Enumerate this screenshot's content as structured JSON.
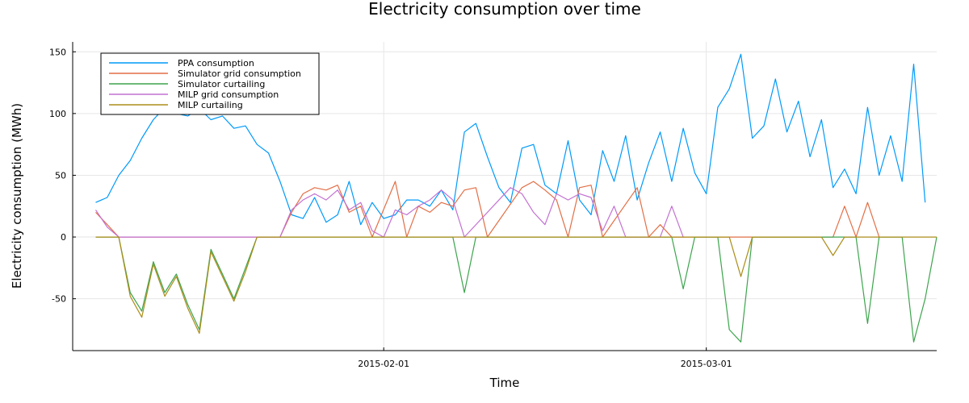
{
  "chart_data": {
    "type": "line",
    "title": "Electricity consumption over time",
    "xlabel": "Time",
    "ylabel": "Electricity consumption (MWh)",
    "x_range": [
      "2015-01-05",
      "2015-03-21"
    ],
    "ylim": [
      -92,
      158
    ],
    "x_ticks": [
      {
        "date": "2015-02-01",
        "label": "2015-02-01"
      },
      {
        "date": "2015-03-01",
        "label": "2015-03-01"
      }
    ],
    "y_ticks": [
      -50,
      0,
      50,
      100,
      150
    ],
    "grid": true,
    "legend_position": "top-left",
    "series": [
      {
        "name": "PPA consumption",
        "color": "#009af9",
        "points": [
          [
            "2015-01-07",
            28
          ],
          [
            "2015-01-08",
            32
          ],
          [
            "2015-01-09",
            50
          ],
          [
            "2015-01-10",
            62
          ],
          [
            "2015-01-11",
            80
          ],
          [
            "2015-01-12",
            95
          ],
          [
            "2015-01-13",
            105
          ],
          [
            "2015-01-14",
            100
          ],
          [
            "2015-01-15",
            98
          ],
          [
            "2015-01-16",
            104
          ],
          [
            "2015-01-17",
            95
          ],
          [
            "2015-01-18",
            98
          ],
          [
            "2015-01-19",
            88
          ],
          [
            "2015-01-20",
            90
          ],
          [
            "2015-01-21",
            75
          ],
          [
            "2015-01-22",
            68
          ],
          [
            "2015-01-23",
            45
          ],
          [
            "2015-01-24",
            18
          ],
          [
            "2015-01-25",
            15
          ],
          [
            "2015-01-26",
            32
          ],
          [
            "2015-01-27",
            12
          ],
          [
            "2015-01-28",
            18
          ],
          [
            "2015-01-29",
            45
          ],
          [
            "2015-01-30",
            10
          ],
          [
            "2015-01-31",
            28
          ],
          [
            "2015-02-01",
            15
          ],
          [
            "2015-02-02",
            18
          ],
          [
            "2015-02-03",
            30
          ],
          [
            "2015-02-04",
            30
          ],
          [
            "2015-02-05",
            25
          ],
          [
            "2015-02-06",
            38
          ],
          [
            "2015-02-07",
            22
          ],
          [
            "2015-02-08",
            85
          ],
          [
            "2015-02-09",
            92
          ],
          [
            "2015-02-10",
            65
          ],
          [
            "2015-02-11",
            40
          ],
          [
            "2015-02-12",
            28
          ],
          [
            "2015-02-13",
            72
          ],
          [
            "2015-02-14",
            75
          ],
          [
            "2015-02-15",
            42
          ],
          [
            "2015-02-16",
            35
          ],
          [
            "2015-02-17",
            78
          ],
          [
            "2015-02-18",
            30
          ],
          [
            "2015-02-19",
            18
          ],
          [
            "2015-02-20",
            70
          ],
          [
            "2015-02-21",
            45
          ],
          [
            "2015-02-22",
            82
          ],
          [
            "2015-02-23",
            30
          ],
          [
            "2015-02-24",
            60
          ],
          [
            "2015-02-25",
            85
          ],
          [
            "2015-02-26",
            45
          ],
          [
            "2015-02-27",
            88
          ],
          [
            "2015-02-28",
            52
          ],
          [
            "2015-03-01",
            35
          ],
          [
            "2015-03-02",
            105
          ],
          [
            "2015-03-03",
            120
          ],
          [
            "2015-03-04",
            148
          ],
          [
            "2015-03-05",
            80
          ],
          [
            "2015-03-06",
            90
          ],
          [
            "2015-03-07",
            128
          ],
          [
            "2015-03-08",
            85
          ],
          [
            "2015-03-09",
            110
          ],
          [
            "2015-03-10",
            65
          ],
          [
            "2015-03-11",
            95
          ],
          [
            "2015-03-12",
            40
          ],
          [
            "2015-03-13",
            55
          ],
          [
            "2015-03-14",
            35
          ],
          [
            "2015-03-15",
            105
          ],
          [
            "2015-03-16",
            50
          ],
          [
            "2015-03-17",
            82
          ],
          [
            "2015-03-18",
            45
          ],
          [
            "2015-03-19",
            140
          ],
          [
            "2015-03-20",
            28
          ]
        ]
      },
      {
        "name": "Simulator grid consumption",
        "color": "#e26f46",
        "points": [
          [
            "2015-01-07",
            20
          ],
          [
            "2015-01-08",
            10
          ],
          [
            "2015-01-09",
            0
          ],
          [
            "2015-01-23",
            0
          ],
          [
            "2015-01-24",
            20
          ],
          [
            "2015-01-25",
            35
          ],
          [
            "2015-01-26",
            40
          ],
          [
            "2015-01-27",
            38
          ],
          [
            "2015-01-28",
            42
          ],
          [
            "2015-01-29",
            20
          ],
          [
            "2015-01-30",
            25
          ],
          [
            "2015-01-31",
            0
          ],
          [
            "2015-02-02",
            45
          ],
          [
            "2015-02-03",
            0
          ],
          [
            "2015-02-04",
            25
          ],
          [
            "2015-02-05",
            20
          ],
          [
            "2015-02-06",
            28
          ],
          [
            "2015-02-07",
            25
          ],
          [
            "2015-02-08",
            38
          ],
          [
            "2015-02-09",
            40
          ],
          [
            "2015-02-10",
            0
          ],
          [
            "2015-02-13",
            40
          ],
          [
            "2015-02-14",
            45
          ],
          [
            "2015-02-15",
            38
          ],
          [
            "2015-02-16",
            30
          ],
          [
            "2015-02-17",
            0
          ],
          [
            "2015-02-18",
            40
          ],
          [
            "2015-02-19",
            42
          ],
          [
            "2015-02-20",
            0
          ],
          [
            "2015-02-23",
            40
          ],
          [
            "2015-02-24",
            0
          ],
          [
            "2015-02-25",
            10
          ],
          [
            "2015-02-26",
            0
          ],
          [
            "2015-03-12",
            0
          ],
          [
            "2015-03-13",
            25
          ],
          [
            "2015-03-14",
            0
          ],
          [
            "2015-03-15",
            28
          ],
          [
            "2015-03-16",
            0
          ]
        ]
      },
      {
        "name": "Simulator curtailing",
        "color": "#3da44d",
        "points": [
          [
            "2015-01-07",
            0
          ],
          [
            "2015-01-09",
            0
          ],
          [
            "2015-01-10",
            -45
          ],
          [
            "2015-01-11",
            -60
          ],
          [
            "2015-01-12",
            -20
          ],
          [
            "2015-01-13",
            -45
          ],
          [
            "2015-01-14",
            -30
          ],
          [
            "2015-01-15",
            -55
          ],
          [
            "2015-01-16",
            -75
          ],
          [
            "2015-01-17",
            -10
          ],
          [
            "2015-01-18",
            -30
          ],
          [
            "2015-01-19",
            -50
          ],
          [
            "2015-01-20",
            -25
          ],
          [
            "2015-01-21",
            0
          ],
          [
            "2015-02-07",
            0
          ],
          [
            "2015-02-08",
            -45
          ],
          [
            "2015-02-09",
            0
          ],
          [
            "2015-02-26",
            0
          ],
          [
            "2015-02-27",
            -42
          ],
          [
            "2015-02-28",
            0
          ],
          [
            "2015-03-02",
            0
          ],
          [
            "2015-03-03",
            -75
          ],
          [
            "2015-03-04",
            -85
          ],
          [
            "2015-03-05",
            0
          ],
          [
            "2015-03-14",
            0
          ],
          [
            "2015-03-15",
            -70
          ],
          [
            "2015-03-16",
            0
          ],
          [
            "2015-03-18",
            0
          ],
          [
            "2015-03-19",
            -85
          ],
          [
            "2015-03-20",
            -50
          ],
          [
            "2015-03-21",
            0
          ]
        ]
      },
      {
        "name": "MILP grid consumption",
        "color": "#c271d2",
        "points": [
          [
            "2015-01-07",
            22
          ],
          [
            "2015-01-08",
            8
          ],
          [
            "2015-01-09",
            0
          ],
          [
            "2015-01-23",
            0
          ],
          [
            "2015-01-24",
            22
          ],
          [
            "2015-01-25",
            30
          ],
          [
            "2015-01-26",
            35
          ],
          [
            "2015-01-27",
            30
          ],
          [
            "2015-01-28",
            38
          ],
          [
            "2015-01-29",
            22
          ],
          [
            "2015-01-30",
            28
          ],
          [
            "2015-01-31",
            5
          ],
          [
            "2015-02-01",
            0
          ],
          [
            "2015-02-02",
            22
          ],
          [
            "2015-02-03",
            18
          ],
          [
            "2015-02-04",
            25
          ],
          [
            "2015-02-05",
            30
          ],
          [
            "2015-02-06",
            38
          ],
          [
            "2015-02-07",
            30
          ],
          [
            "2015-02-08",
            0
          ],
          [
            "2015-02-12",
            40
          ],
          [
            "2015-02-13",
            35
          ],
          [
            "2015-02-14",
            20
          ],
          [
            "2015-02-15",
            10
          ],
          [
            "2015-02-16",
            35
          ],
          [
            "2015-02-17",
            30
          ],
          [
            "2015-02-18",
            35
          ],
          [
            "2015-02-19",
            32
          ],
          [
            "2015-02-20",
            5
          ],
          [
            "2015-02-21",
            25
          ],
          [
            "2015-02-22",
            0
          ],
          [
            "2015-02-25",
            0
          ],
          [
            "2015-02-26",
            25
          ],
          [
            "2015-02-27",
            0
          ]
        ]
      },
      {
        "name": "MILP curtailing",
        "color": "#ac8d18",
        "points": [
          [
            "2015-01-07",
            0
          ],
          [
            "2015-01-09",
            0
          ],
          [
            "2015-01-10",
            -48
          ],
          [
            "2015-01-11",
            -65
          ],
          [
            "2015-01-12",
            -22
          ],
          [
            "2015-01-13",
            -48
          ],
          [
            "2015-01-14",
            -32
          ],
          [
            "2015-01-15",
            -58
          ],
          [
            "2015-01-16",
            -78
          ],
          [
            "2015-01-17",
            -12
          ],
          [
            "2015-01-18",
            -32
          ],
          [
            "2015-01-19",
            -52
          ],
          [
            "2015-01-20",
            -28
          ],
          [
            "2015-01-21",
            0
          ],
          [
            "2015-03-03",
            0
          ],
          [
            "2015-03-04",
            -32
          ],
          [
            "2015-03-05",
            0
          ],
          [
            "2015-03-11",
            0
          ],
          [
            "2015-03-12",
            -15
          ],
          [
            "2015-03-13",
            0
          ],
          [
            "2015-03-21",
            0
          ]
        ]
      }
    ]
  }
}
